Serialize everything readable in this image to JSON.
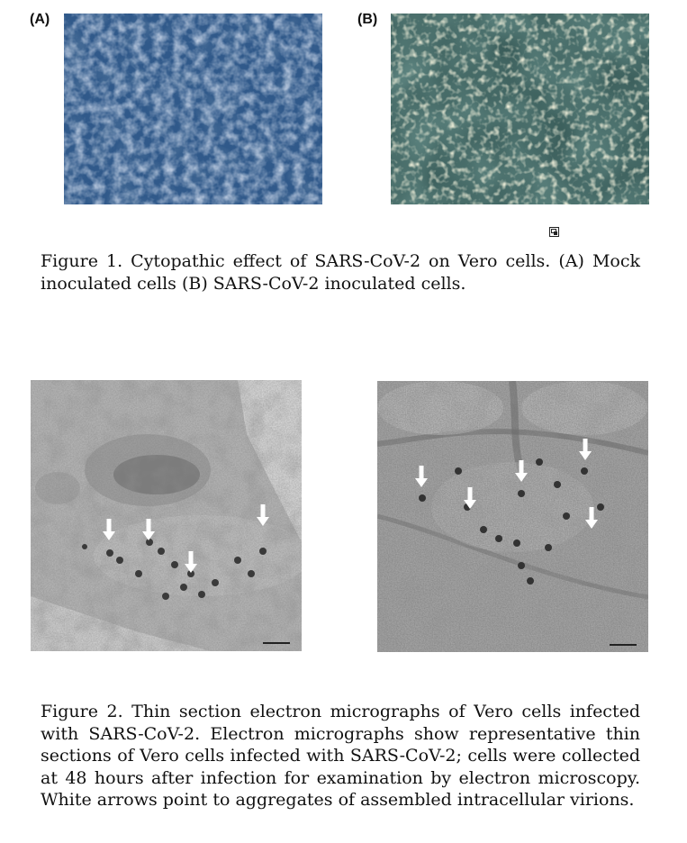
{
  "figure1": {
    "panel_a_label": "(A)",
    "panel_b_label": "(B)",
    "caption": "Figure 1. Cytopathic effect of SARS-CoV-2 on Vero cells. (A) Mock inoculated cells (B) SARS-CoV-2 inoculated cells."
  },
  "figure2": {
    "caption": "Figure 2. Thin section electron micrographs of Vero cells infected with SARS-CoV-2. Electron micrographs show representative thin sections of Vero cells infected with SARS-CoV-2; cells were collected at 48 hours after infection for examination by electron microscopy. White arrows point to aggregates of assembled intracellular virions."
  },
  "icons": {
    "small_icon": "document-icon"
  },
  "colors": {
    "micrograph_blue": "#2f5a8a",
    "micrograph_teal": "#3a5c5a",
    "em_gray": "#9a9a9a",
    "arrow": "#ffffff"
  }
}
